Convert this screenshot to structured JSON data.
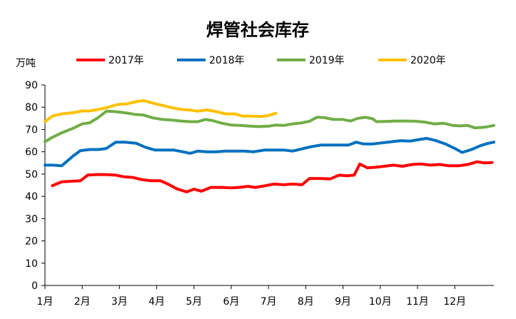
{
  "chart_data": {
    "type": "line",
    "title": "焊管社会库存",
    "ylabel": "万吨",
    "xlabel": "",
    "ylim": [
      0,
      90
    ],
    "yticks": [
      0,
      10,
      20,
      30,
      40,
      50,
      60,
      70,
      80,
      90
    ],
    "xlim": [
      1,
      13.05
    ],
    "x_tick_labels": [
      "1月",
      "2月",
      "3月",
      "4月",
      "5月",
      "6月",
      "7月",
      "8月",
      "9月",
      "10月",
      "11月",
      "12月"
    ],
    "legend_position": "top",
    "grid": false,
    "series": [
      {
        "name": "2017年",
        "color": "#ff0000",
        "points": [
          [
            1.2,
            44.8
          ],
          [
            1.45,
            46.5
          ],
          [
            1.75,
            46.8
          ],
          [
            1.95,
            47
          ],
          [
            2.15,
            49.5
          ],
          [
            2.4,
            49.8
          ],
          [
            2.7,
            49.7
          ],
          [
            2.9,
            49.5
          ],
          [
            3.1,
            48.8
          ],
          [
            3.35,
            48.5
          ],
          [
            3.6,
            47.5
          ],
          [
            3.85,
            47
          ],
          [
            4.1,
            47
          ],
          [
            4.3,
            45.5
          ],
          [
            4.55,
            43.3
          ],
          [
            4.8,
            42
          ],
          [
            5.0,
            43.2
          ],
          [
            5.2,
            42.3
          ],
          [
            5.45,
            44
          ],
          [
            5.75,
            44
          ],
          [
            6.0,
            43.8
          ],
          [
            6.2,
            44
          ],
          [
            6.45,
            44.5
          ],
          [
            6.65,
            44
          ],
          [
            6.9,
            44.7
          ],
          [
            7.15,
            45.5
          ],
          [
            7.4,
            45.2
          ],
          [
            7.65,
            45.5
          ],
          [
            7.9,
            45.2
          ],
          [
            8.1,
            48
          ],
          [
            8.4,
            48
          ],
          [
            8.65,
            47.8
          ],
          [
            8.9,
            49.5
          ],
          [
            9.1,
            49.2
          ],
          [
            9.3,
            49.5
          ],
          [
            9.45,
            54.5
          ],
          [
            9.65,
            52.8
          ],
          [
            9.85,
            53
          ],
          [
            10.1,
            53.5
          ],
          [
            10.35,
            54
          ],
          [
            10.6,
            53.5
          ],
          [
            10.85,
            54.3
          ],
          [
            11.1,
            54.5
          ],
          [
            11.35,
            54
          ],
          [
            11.6,
            54.3
          ],
          [
            11.85,
            53.7
          ],
          [
            12.1,
            53.7
          ],
          [
            12.35,
            54.3
          ],
          [
            12.6,
            55.5
          ],
          [
            12.8,
            55
          ],
          [
            13.0,
            55.2
          ]
        ]
      },
      {
        "name": "2018年",
        "color": "#0070c0",
        "points": [
          [
            1.0,
            54
          ],
          [
            1.2,
            54
          ],
          [
            1.45,
            53.7
          ],
          [
            1.75,
            58
          ],
          [
            1.95,
            60.5
          ],
          [
            2.2,
            61
          ],
          [
            2.45,
            61
          ],
          [
            2.65,
            61.5
          ],
          [
            2.9,
            64.3
          ],
          [
            3.15,
            64.3
          ],
          [
            3.45,
            63.8
          ],
          [
            3.7,
            62
          ],
          [
            3.95,
            60.8
          ],
          [
            4.2,
            60.8
          ],
          [
            4.45,
            60.8
          ],
          [
            4.7,
            60
          ],
          [
            4.9,
            59.3
          ],
          [
            5.1,
            60.3
          ],
          [
            5.35,
            60
          ],
          [
            5.6,
            60
          ],
          [
            5.85,
            60.3
          ],
          [
            6.1,
            60.3
          ],
          [
            6.35,
            60.3
          ],
          [
            6.6,
            60
          ],
          [
            6.9,
            60.8
          ],
          [
            7.15,
            60.8
          ],
          [
            7.4,
            60.8
          ],
          [
            7.65,
            60.3
          ],
          [
            7.9,
            61.3
          ],
          [
            8.15,
            62.3
          ],
          [
            8.4,
            63
          ],
          [
            8.65,
            63
          ],
          [
            8.9,
            63
          ],
          [
            9.15,
            63
          ],
          [
            9.35,
            64.3
          ],
          [
            9.55,
            63.5
          ],
          [
            9.8,
            63.5
          ],
          [
            10.05,
            64
          ],
          [
            10.3,
            64.5
          ],
          [
            10.55,
            65
          ],
          [
            10.8,
            64.8
          ],
          [
            11.05,
            65.5
          ],
          [
            11.25,
            66
          ],
          [
            11.5,
            65
          ],
          [
            11.75,
            63.5
          ],
          [
            12.0,
            61.5
          ],
          [
            12.2,
            59.7
          ],
          [
            12.45,
            61
          ],
          [
            12.7,
            62.8
          ],
          [
            12.9,
            63.8
          ],
          [
            13.05,
            64.3
          ]
        ]
      },
      {
        "name": "2019年",
        "color": "#70ad47",
        "points": [
          [
            1.0,
            64.5
          ],
          [
            1.2,
            66.5
          ],
          [
            1.45,
            68.5
          ],
          [
            1.75,
            70.5
          ],
          [
            2.0,
            72.5
          ],
          [
            2.2,
            73
          ],
          [
            2.4,
            75
          ],
          [
            2.65,
            78.2
          ],
          [
            2.9,
            78
          ],
          [
            3.15,
            77.5
          ],
          [
            3.4,
            76.8
          ],
          [
            3.65,
            76.5
          ],
          [
            3.9,
            75.2
          ],
          [
            4.15,
            74.5
          ],
          [
            4.4,
            74.2
          ],
          [
            4.65,
            73.8
          ],
          [
            4.9,
            73.5
          ],
          [
            5.1,
            73.5
          ],
          [
            5.3,
            74.5
          ],
          [
            5.5,
            74
          ],
          [
            5.75,
            72.8
          ],
          [
            6.0,
            72
          ],
          [
            6.25,
            71.8
          ],
          [
            6.5,
            71.5
          ],
          [
            6.75,
            71.3
          ],
          [
            7.0,
            71.5
          ],
          [
            7.2,
            72
          ],
          [
            7.4,
            71.8
          ],
          [
            7.65,
            72.5
          ],
          [
            7.9,
            73
          ],
          [
            8.1,
            73.7
          ],
          [
            8.3,
            75.5
          ],
          [
            8.5,
            75.3
          ],
          [
            8.75,
            74.5
          ],
          [
            9.0,
            74.5
          ],
          [
            9.2,
            73.8
          ],
          [
            9.4,
            75
          ],
          [
            9.6,
            75.5
          ],
          [
            9.8,
            74.8
          ],
          [
            9.9,
            73.5
          ],
          [
            10.1,
            73.6
          ],
          [
            10.4,
            73.8
          ],
          [
            10.7,
            73.8
          ],
          [
            10.95,
            73.7
          ],
          [
            11.2,
            73.3
          ],
          [
            11.45,
            72.5
          ],
          [
            11.7,
            72.8
          ],
          [
            11.95,
            71.8
          ],
          [
            12.15,
            71.6
          ],
          [
            12.35,
            71.8
          ],
          [
            12.55,
            70.7
          ],
          [
            12.8,
            71
          ],
          [
            13.05,
            71.8
          ]
        ]
      },
      {
        "name": "2020年",
        "color": "#ffc000",
        "points": [
          [
            1.0,
            73.5
          ],
          [
            1.2,
            76
          ],
          [
            1.45,
            77
          ],
          [
            1.75,
            77.5
          ],
          [
            2.0,
            78.3
          ],
          [
            2.2,
            78.3
          ],
          [
            2.45,
            79
          ],
          [
            2.7,
            80
          ],
          [
            2.95,
            81.2
          ],
          [
            3.2,
            81.5
          ],
          [
            3.45,
            82.5
          ],
          [
            3.65,
            83
          ],
          [
            3.9,
            81.8
          ],
          [
            4.15,
            80.8
          ],
          [
            4.4,
            79.8
          ],
          [
            4.65,
            79
          ],
          [
            4.9,
            78.7
          ],
          [
            5.1,
            78.2
          ],
          [
            5.35,
            78.8
          ],
          [
            5.6,
            78
          ],
          [
            5.85,
            77
          ],
          [
            6.1,
            77
          ],
          [
            6.3,
            76
          ],
          [
            6.55,
            76
          ],
          [
            6.8,
            75.8
          ],
          [
            7.0,
            76.3
          ],
          [
            7.2,
            77.3
          ]
        ]
      }
    ]
  }
}
